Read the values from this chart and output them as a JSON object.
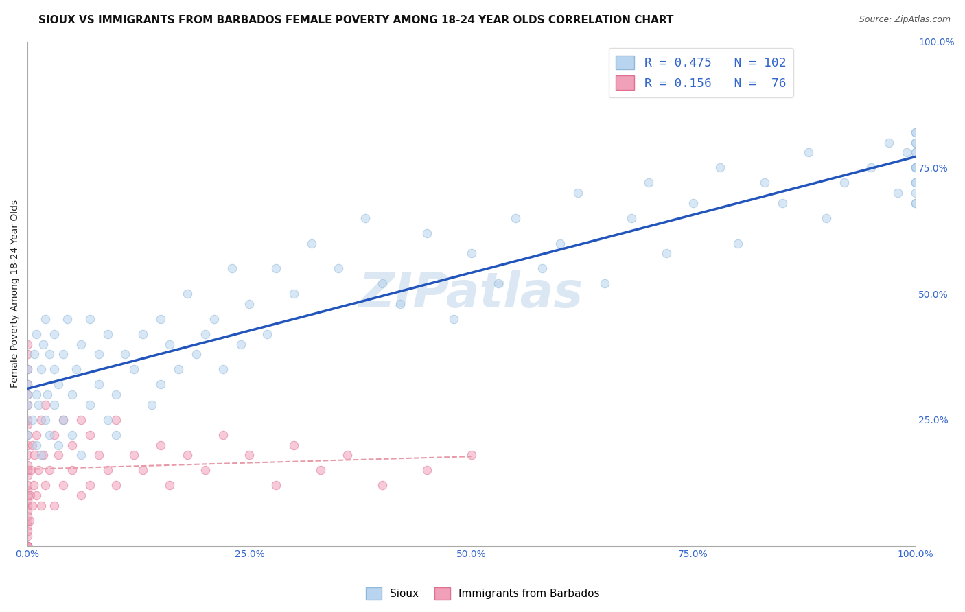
{
  "title": "SIOUX VS IMMIGRANTS FROM BARBADOS FEMALE POVERTY AMONG 18-24 YEAR OLDS CORRELATION CHART",
  "source": "Source: ZipAtlas.com",
  "ylabel": "Female Poverty Among 18-24 Year Olds",
  "watermark": "ZIPatlas",
  "legend_labels": [
    "Sioux",
    "Immigrants from Barbados"
  ],
  "r1": 0.475,
  "n1": 102,
  "r2": 0.156,
  "n2": 76,
  "sioux_color": "#b8d4ee",
  "barbados_color": "#f0a0b8",
  "barbados_edge": "#e07090",
  "trend_color_sioux": "#2255bb",
  "trend_color_barbados": "#e899a8",
  "sioux_x": [
    0.0,
    0.0,
    0.0,
    0.0,
    0.0,
    0.005,
    0.008,
    0.01,
    0.01,
    0.01,
    0.012,
    0.015,
    0.015,
    0.018,
    0.02,
    0.02,
    0.022,
    0.025,
    0.025,
    0.03,
    0.03,
    0.03,
    0.035,
    0.035,
    0.04,
    0.04,
    0.045,
    0.05,
    0.05,
    0.055,
    0.06,
    0.06,
    0.07,
    0.07,
    0.08,
    0.08,
    0.09,
    0.09,
    0.1,
    0.1,
    0.11,
    0.12,
    0.13,
    0.14,
    0.15,
    0.15,
    0.16,
    0.17,
    0.18,
    0.19,
    0.2,
    0.21,
    0.22,
    0.23,
    0.24,
    0.25,
    0.27,
    0.28,
    0.3,
    0.32,
    0.35,
    0.38,
    0.4,
    0.42,
    0.45,
    0.48,
    0.5,
    0.53,
    0.55,
    0.58,
    0.6,
    0.62,
    0.65,
    0.68,
    0.7,
    0.72,
    0.75,
    0.78,
    0.8,
    0.83,
    0.85,
    0.88,
    0.9,
    0.92,
    0.95,
    0.97,
    0.98,
    0.99,
    1.0,
    1.0,
    1.0,
    1.0,
    1.0,
    1.0,
    1.0,
    1.0,
    1.0,
    1.0,
    1.0,
    1.0,
    1.0,
    1.0
  ],
  "sioux_y": [
    0.32,
    0.28,
    0.35,
    0.3,
    0.22,
    0.25,
    0.38,
    0.2,
    0.3,
    0.42,
    0.28,
    0.35,
    0.18,
    0.4,
    0.25,
    0.45,
    0.3,
    0.22,
    0.38,
    0.28,
    0.35,
    0.42,
    0.2,
    0.32,
    0.38,
    0.25,
    0.45,
    0.3,
    0.22,
    0.35,
    0.4,
    0.18,
    0.28,
    0.45,
    0.32,
    0.38,
    0.25,
    0.42,
    0.3,
    0.22,
    0.38,
    0.35,
    0.42,
    0.28,
    0.45,
    0.32,
    0.4,
    0.35,
    0.5,
    0.38,
    0.42,
    0.45,
    0.35,
    0.55,
    0.4,
    0.48,
    0.42,
    0.55,
    0.5,
    0.6,
    0.55,
    0.65,
    0.52,
    0.48,
    0.62,
    0.45,
    0.58,
    0.52,
    0.65,
    0.55,
    0.6,
    0.7,
    0.52,
    0.65,
    0.72,
    0.58,
    0.68,
    0.75,
    0.6,
    0.72,
    0.68,
    0.78,
    0.65,
    0.72,
    0.75,
    0.8,
    0.7,
    0.78,
    0.75,
    0.8,
    0.72,
    0.68,
    0.82,
    0.78,
    0.72,
    0.8,
    0.75,
    0.7,
    0.78,
    0.82,
    0.68,
    0.75
  ],
  "barbados_x": [
    0.0,
    0.0,
    0.0,
    0.0,
    0.0,
    0.0,
    0.0,
    0.0,
    0.0,
    0.0,
    0.0,
    0.0,
    0.0,
    0.0,
    0.0,
    0.0,
    0.0,
    0.0,
    0.0,
    0.0,
    0.0,
    0.0,
    0.0,
    0.0,
    0.0,
    0.0,
    0.0,
    0.0,
    0.0,
    0.0,
    0.002,
    0.003,
    0.004,
    0.005,
    0.005,
    0.007,
    0.008,
    0.01,
    0.01,
    0.012,
    0.015,
    0.015,
    0.018,
    0.02,
    0.02,
    0.025,
    0.03,
    0.03,
    0.035,
    0.04,
    0.04,
    0.05,
    0.05,
    0.06,
    0.06,
    0.07,
    0.07,
    0.08,
    0.09,
    0.1,
    0.1,
    0.12,
    0.13,
    0.15,
    0.16,
    0.18,
    0.2,
    0.22,
    0.25,
    0.28,
    0.3,
    0.33,
    0.36,
    0.4,
    0.45,
    0.5
  ],
  "barbados_y": [
    0.0,
    0.0,
    0.0,
    0.0,
    0.0,
    0.02,
    0.03,
    0.04,
    0.05,
    0.06,
    0.07,
    0.08,
    0.09,
    0.1,
    0.11,
    0.12,
    0.14,
    0.15,
    0.16,
    0.18,
    0.2,
    0.22,
    0.24,
    0.25,
    0.28,
    0.3,
    0.32,
    0.35,
    0.38,
    0.4,
    0.05,
    0.1,
    0.15,
    0.08,
    0.2,
    0.12,
    0.18,
    0.1,
    0.22,
    0.15,
    0.08,
    0.25,
    0.18,
    0.12,
    0.28,
    0.15,
    0.08,
    0.22,
    0.18,
    0.12,
    0.25,
    0.15,
    0.2,
    0.1,
    0.25,
    0.12,
    0.22,
    0.18,
    0.15,
    0.12,
    0.25,
    0.18,
    0.15,
    0.2,
    0.12,
    0.18,
    0.15,
    0.22,
    0.18,
    0.12,
    0.2,
    0.15,
    0.18,
    0.12,
    0.15,
    0.18
  ],
  "xlim": [
    0.0,
    1.0
  ],
  "ylim": [
    0.0,
    1.0
  ],
  "xticks": [
    0.0,
    0.25,
    0.5,
    0.75,
    1.0
  ],
  "xticklabels": [
    "0.0%",
    "25.0%",
    "50.0%",
    "75.0%",
    "100.0%"
  ],
  "yticks_right": [
    0.25,
    0.5,
    0.75,
    1.0
  ],
  "yticklabels_right": [
    "25.0%",
    "50.0%",
    "75.0%",
    "100.0%"
  ],
  "title_fontsize": 11,
  "axis_label_fontsize": 10,
  "tick_fontsize": 10,
  "legend_fontsize": 13,
  "watermark_fontsize": 52,
  "watermark_color": "#c5d8ee",
  "background_color": "#ffffff",
  "grid_color": "#cccccc",
  "scatter_size": 80,
  "scatter_alpha": 0.55,
  "scatter_linewidth": 0.8,
  "scatter_edgecolor": "#90b8d8"
}
